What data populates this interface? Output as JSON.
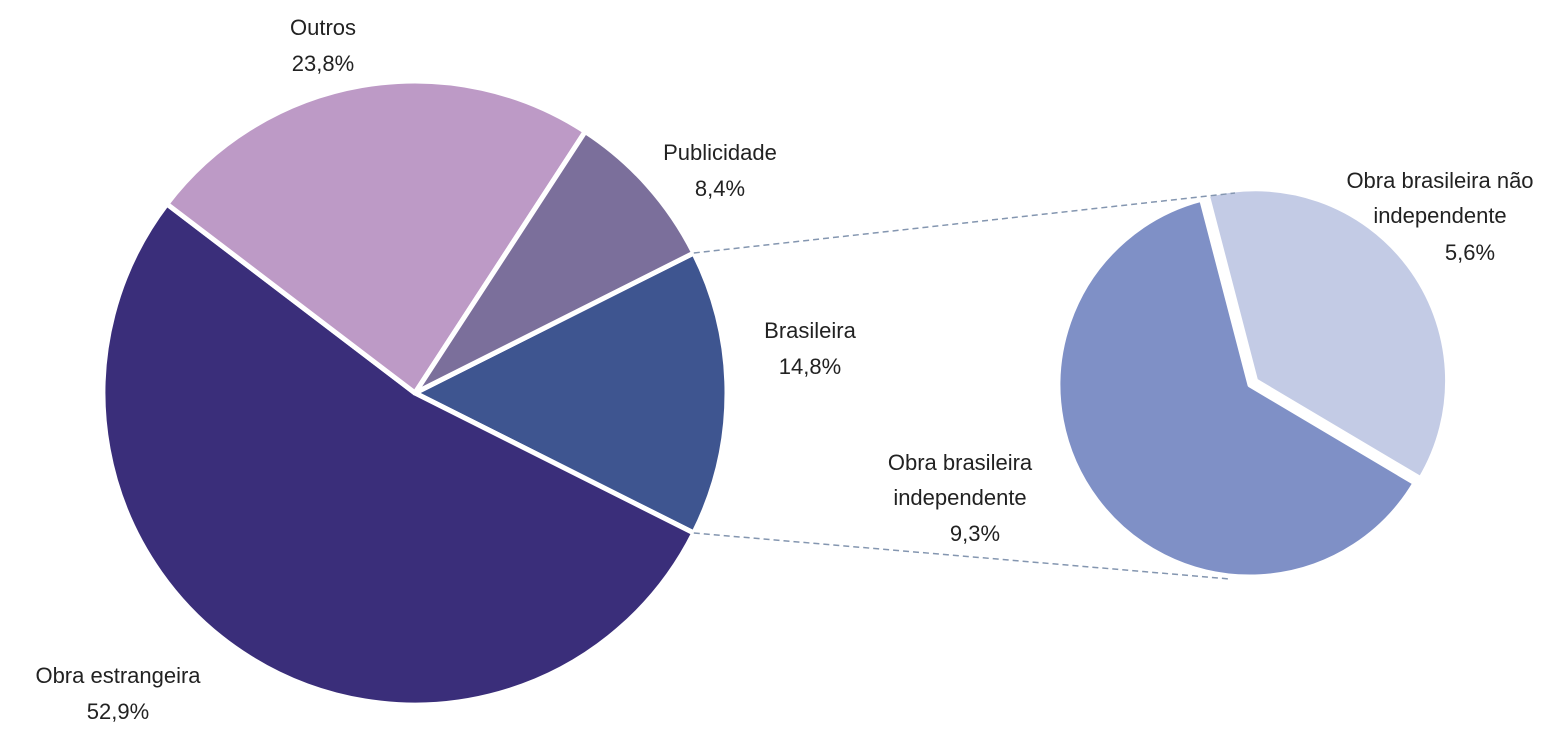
{
  "chart_data": {
    "type": "pie",
    "categories": [
      "Brasileira",
      "Obra estrangeira",
      "Outros",
      "Publicidade"
    ],
    "values": [
      14.8,
      52.9,
      23.8,
      8.4
    ],
    "value_labels": [
      "14,8%",
      "52,9%",
      "23,8%",
      "8,4%"
    ],
    "colors": [
      "#3e5590",
      "#3a2e7a",
      "#bd9ac6",
      "#7b6f9b"
    ],
    "secondary": {
      "categories": [
        "Obra brasileira não independente",
        "Obra brasileira independente"
      ],
      "values": [
        5.6,
        9.3
      ],
      "value_labels": [
        "5,6%",
        "9,3%"
      ],
      "colors": [
        "#c3cbe5",
        "#7f90c6"
      ]
    }
  }
}
